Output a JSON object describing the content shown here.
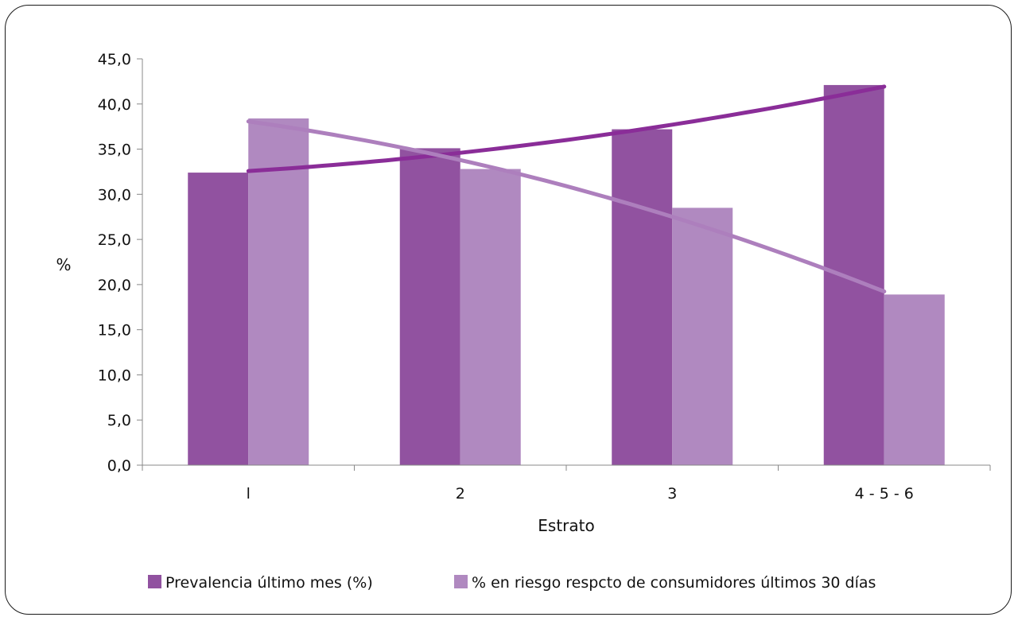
{
  "chart_data": {
    "type": "bar",
    "title": "",
    "xlabel": "Estrato",
    "ylabel": "%",
    "ylim": [
      0,
      45
    ],
    "ytick_step": 5,
    "ytick_labels": [
      "0,0",
      "5,0",
      "10,0",
      "15,0",
      "20,0",
      "25,0",
      "30,0",
      "35,0",
      "40,0",
      "45,0"
    ],
    "categories": [
      "1",
      "2",
      "3",
      "4 - 5 - 6"
    ],
    "category_labels": [
      "l",
      "2",
      "3",
      "4 - 5 - 6"
    ],
    "series": [
      {
        "name": "Prevalencia último mes (%)",
        "values": [
          32.4,
          35.1,
          37.2,
          42.1
        ],
        "color": "#9152a0",
        "trend_color": "#8a2d98"
      },
      {
        "name": "% en riesgo respcto de consumidores últimos 30 días",
        "values": [
          38.4,
          32.8,
          28.5,
          18.9
        ],
        "color": "#b089c0",
        "trend_color": "#ad7fbd"
      }
    ],
    "trendlines": true,
    "grid": false,
    "legend_position": "bottom"
  }
}
